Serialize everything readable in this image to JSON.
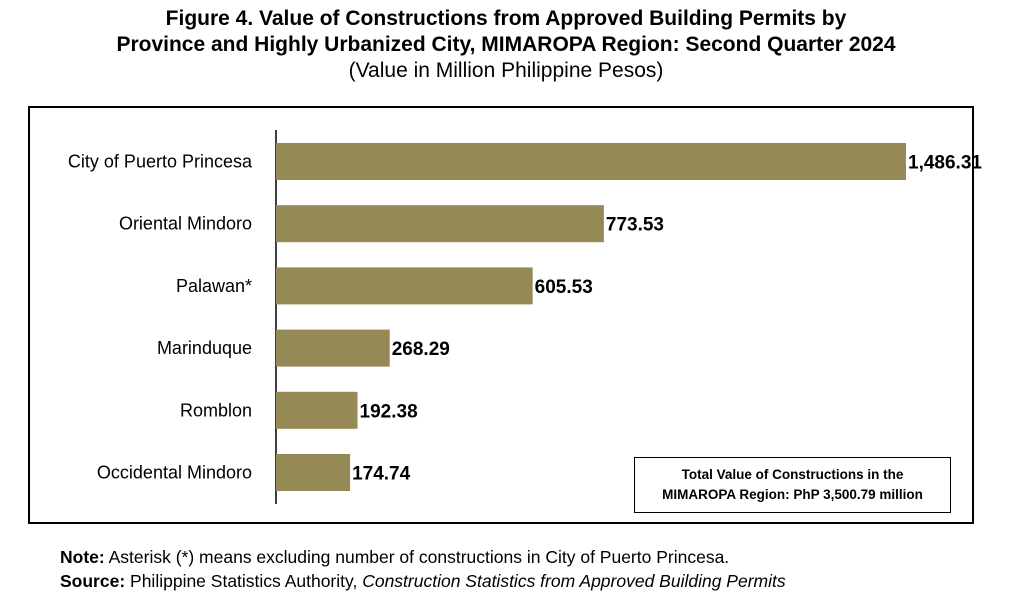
{
  "title": {
    "line1": "Figure 4. Value of Constructions from Approved Building Permits by",
    "line2": "Province and Highly Urbanized City, MIMAROPA Region: Second Quarter 2024",
    "subtitle": "(Value in Million Philippine Pesos)"
  },
  "chart_data": {
    "type": "bar",
    "orientation": "horizontal",
    "categories": [
      "City of Puerto Princesa",
      "Oriental Mindoro",
      "Palawan*",
      "Marinduque",
      "Romblon",
      "Occidental Mindoro"
    ],
    "values": [
      1486.31,
      773.53,
      605.53,
      268.29,
      192.38,
      174.74
    ],
    "value_labels": [
      "1,486.31",
      "773.53",
      "605.53",
      "268.29",
      "192.38",
      "174.74"
    ],
    "bar_color": "#958a55",
    "grid": false,
    "legend": "none"
  },
  "total_box": {
    "line1": "Total Value of Constructions in the",
    "line2": "MIMAROPA Region: PhP 3,500.79 million"
  },
  "notes": {
    "note_label": "Note:",
    "note_text": "Asterisk (*) means excluding number of constructions in City of Puerto Princesa.",
    "source_label": "Source:",
    "source_text": "Philippine Statistics Authority,",
    "source_title": "Construction Statistics from Approved Building Permits"
  }
}
